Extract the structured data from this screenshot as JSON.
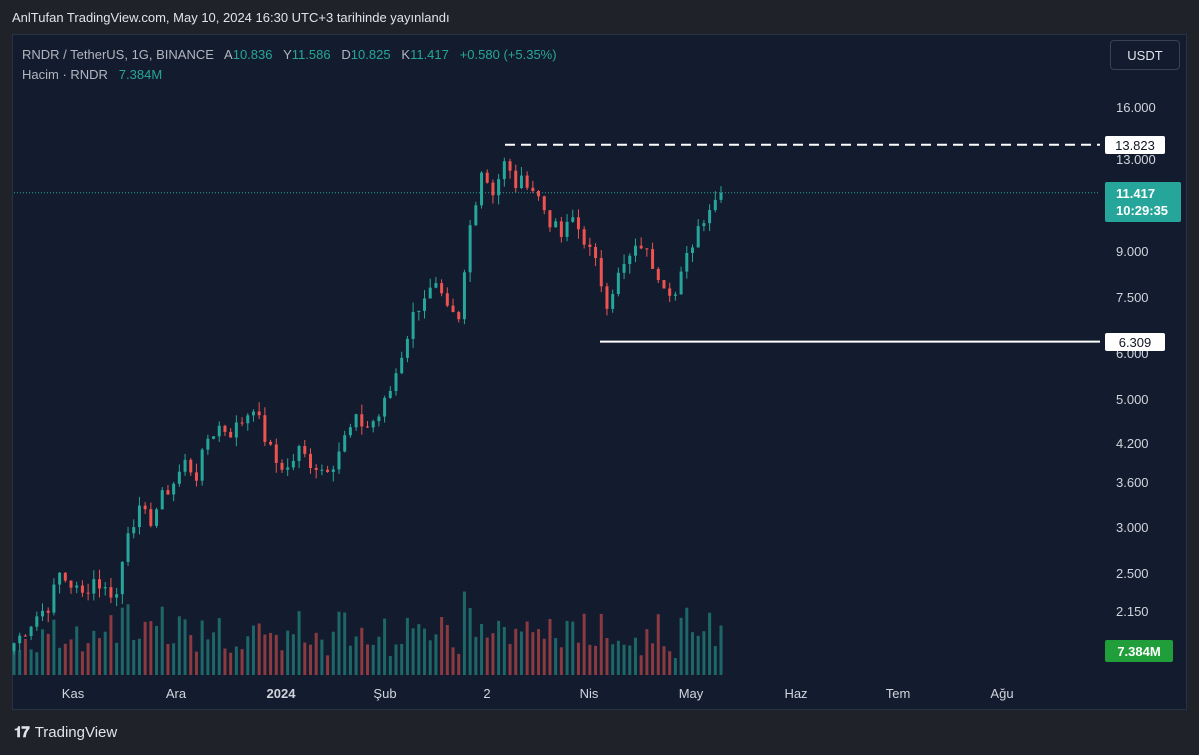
{
  "caption": "AnlTufan TradingView.com, May 10, 2024 16:30 UTC+3 tarihinde yayınlandı",
  "legend": {
    "symbol": "RNDR / TetherUS, 1G, BINANCE",
    "open_label": "A",
    "open": "10.836",
    "high_label": "Y",
    "high": "11.586",
    "low_label": "D",
    "low": "10.825",
    "close_label": "K",
    "close": "11.417",
    "change": "+0.580 (+5.35%)"
  },
  "volume_legend": {
    "label": "Hacim · RNDR",
    "value": "7.384M"
  },
  "currency_button": "USDT",
  "price_axis_ticks": [
    "16.000",
    "13.000",
    "9.000",
    "7.500",
    "6.000",
    "5.000",
    "4.200",
    "3.600",
    "3.000",
    "2.500",
    "2.150"
  ],
  "level_badges": {
    "resistance": "13.823",
    "support": "6.309"
  },
  "last_price": {
    "price": "11.417",
    "countdown": "10:29:35"
  },
  "volume_badge": "7.384M",
  "time_axis_ticks": [
    {
      "label": "Kas",
      "bold": false
    },
    {
      "label": "Ara",
      "bold": false
    },
    {
      "label": "2024",
      "bold": true
    },
    {
      "label": "Şub",
      "bold": false
    },
    {
      "label": "2",
      "bold": false
    },
    {
      "label": "Nis",
      "bold": false
    },
    {
      "label": "May",
      "bold": false
    },
    {
      "label": "Haz",
      "bold": false
    },
    {
      "label": "Tem",
      "bold": false
    },
    {
      "label": "Ağu",
      "bold": false
    }
  ],
  "footer": "TradingView",
  "colors": {
    "up": "#26a69a",
    "down": "#ef5350",
    "background": "#131c2e",
    "line": "#ffffff"
  },
  "chart_data": {
    "type": "candlestick",
    "title": "RNDR / TetherUS, 1G, BINANCE",
    "y_scale": "log",
    "y_ticks": [
      16.0,
      13.0,
      9.0,
      7.5,
      6.0,
      5.0,
      4.2,
      3.6,
      3.0,
      2.5,
      2.15
    ],
    "x_ticks": [
      "Kas",
      "Ara",
      "2024",
      "Şub",
      "2",
      "Nis",
      "May",
      "Haz",
      "Tem",
      "Ağu"
    ],
    "horizontal_levels": [
      {
        "value": 13.823,
        "style": "dashed"
      },
      {
        "value": 6.309,
        "style": "solid"
      }
    ],
    "last_close": 11.417,
    "close_path": [
      [
        0,
        1.9
      ],
      [
        2,
        2.0
      ],
      [
        4,
        2.12
      ],
      [
        6,
        2.2
      ],
      [
        8,
        2.5
      ],
      [
        10,
        2.4
      ],
      [
        12,
        2.3
      ],
      [
        14,
        2.45
      ],
      [
        16,
        2.35
      ],
      [
        18,
        2.3
      ],
      [
        20,
        3.0
      ],
      [
        22,
        3.2
      ],
      [
        24,
        3.1
      ],
      [
        26,
        3.4
      ],
      [
        28,
        3.6
      ],
      [
        30,
        3.9
      ],
      [
        32,
        3.7
      ],
      [
        34,
        4.3
      ],
      [
        36,
        4.5
      ],
      [
        38,
        4.4
      ],
      [
        40,
        4.6
      ],
      [
        42,
        4.9
      ],
      [
        44,
        4.3
      ],
      [
        46,
        3.9
      ],
      [
        48,
        3.8
      ],
      [
        50,
        4.1
      ],
      [
        52,
        3.9
      ],
      [
        54,
        3.8
      ],
      [
        56,
        3.9
      ],
      [
        58,
        4.3
      ],
      [
        60,
        4.6
      ],
      [
        62,
        4.5
      ],
      [
        64,
        4.7
      ],
      [
        66,
        5.2
      ],
      [
        68,
        6.0
      ],
      [
        70,
        7.0
      ],
      [
        72,
        7.6
      ],
      [
        74,
        7.8
      ],
      [
        76,
        7.1
      ],
      [
        78,
        6.8
      ],
      [
        80,
        10.0
      ],
      [
        82,
        12.5
      ],
      [
        84,
        11.5
      ],
      [
        86,
        12.8
      ],
      [
        88,
        11.8
      ],
      [
        90,
        12.0
      ],
      [
        92,
        11.2
      ],
      [
        94,
        10.2
      ],
      [
        96,
        9.6
      ],
      [
        98,
        10.3
      ],
      [
        100,
        9.5
      ],
      [
        102,
        8.6
      ],
      [
        104,
        7.4
      ],
      [
        106,
        8.2
      ],
      [
        108,
        8.8
      ],
      [
        110,
        9.3
      ],
      [
        112,
        8.6
      ],
      [
        114,
        8.0
      ],
      [
        116,
        7.6
      ],
      [
        118,
        8.8
      ],
      [
        120,
        10.0
      ],
      [
        122,
        10.8
      ],
      [
        124,
        11.417
      ]
    ],
    "volume_last": "7.384M"
  }
}
